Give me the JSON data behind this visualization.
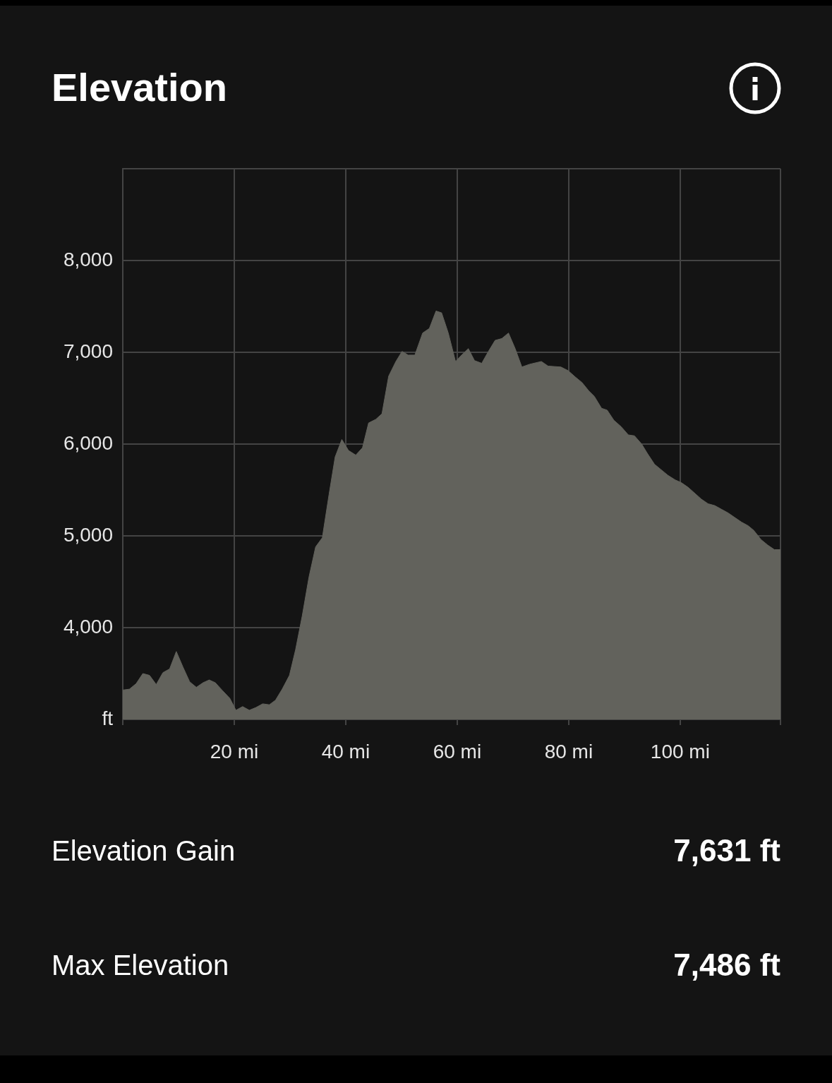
{
  "chart_data": {
    "type": "area",
    "title": "Elevation",
    "x": [
      0,
      1.2,
      2.4,
      3.6,
      4.8,
      6.0,
      7.2,
      8.4,
      9.6,
      10.8,
      12.0,
      13.2,
      14.4,
      15.5,
      16.6,
      17.8,
      19.2,
      20.3,
      21.5,
      22.7,
      23.9,
      25.1,
      26.3,
      27.4,
      28.6,
      29.9,
      31.0,
      32.2,
      33.4,
      34.6,
      35.8,
      37.0,
      38.1,
      39.3,
      40.5,
      41.8,
      43.0,
      44.1,
      45.4,
      46.5,
      47.7,
      49.0,
      50.1,
      51.2,
      52.4,
      53.8,
      55.0,
      56.2,
      57.2,
      58.4,
      59.7,
      60.8,
      62.0,
      63.1,
      64.4,
      65.6,
      66.8,
      68.0,
      69.2,
      70.4,
      71.6,
      73.0,
      75.1,
      76.3,
      78.6,
      79.9,
      81.2,
      82.4,
      83.6,
      84.6,
      85.9,
      86.9,
      88.1,
      89.4,
      90.7,
      91.8,
      93.1,
      94.1,
      95.4,
      96.6,
      97.8,
      99.1,
      100.2,
      101.4,
      102.7,
      103.8,
      105.0,
      106.2,
      107.4,
      108.6,
      109.8,
      111.0,
      112.2,
      113.2,
      114.5,
      115.7,
      116.9,
      118
    ],
    "values": [
      3320,
      3330,
      3390,
      3500,
      3480,
      3380,
      3510,
      3550,
      3740,
      3570,
      3410,
      3350,
      3400,
      3430,
      3400,
      3320,
      3230,
      3100,
      3140,
      3100,
      3130,
      3170,
      3160,
      3210,
      3330,
      3480,
      3760,
      4130,
      4550,
      4880,
      4980,
      5450,
      5860,
      6050,
      5930,
      5880,
      5960,
      6230,
      6270,
      6330,
      6740,
      6900,
      7010,
      6970,
      6970,
      7210,
      7260,
      7450,
      7430,
      7210,
      6900,
      6970,
      7040,
      6910,
      6880,
      7010,
      7130,
      7150,
      7210,
      7040,
      6840,
      6870,
      6900,
      6850,
      6840,
      6800,
      6730,
      6670,
      6580,
      6520,
      6390,
      6370,
      6260,
      6190,
      6100,
      6090,
      6000,
      5900,
      5780,
      5720,
      5660,
      5610,
      5580,
      5530,
      5460,
      5400,
      5350,
      5330,
      5290,
      5250,
      5200,
      5150,
      5110,
      5060,
      4960,
      4900,
      4850,
      4850
    ],
    "color": "#62625c",
    "xlim": [
      0,
      118
    ],
    "xticks": [
      {
        "value": 0,
        "label": null
      },
      {
        "value": 20,
        "label": "20 mi"
      },
      {
        "value": 40,
        "label": "40 mi"
      },
      {
        "value": 60,
        "label": "60 mi"
      },
      {
        "value": 80,
        "label": "80 mi"
      },
      {
        "value": 100,
        "label": "100 mi"
      },
      {
        "value": 118,
        "label": null
      }
    ],
    "ylim": [
      3000,
      9000
    ],
    "yticks": [
      {
        "value": 3000,
        "label": "ft"
      },
      {
        "value": 4000,
        "label": "4,000"
      },
      {
        "value": 5000,
        "label": "5,000"
      },
      {
        "value": 6000,
        "label": "6,000"
      },
      {
        "value": 7000,
        "label": "7,000"
      },
      {
        "value": 8000,
        "label": "8,000"
      },
      {
        "value": 9000,
        "label": null
      }
    ],
    "grid": true,
    "legend": false,
    "marker": "none",
    "annotations": [
      "Elevation Gain",
      "7,631 ft",
      "Max Elevation",
      "7,486 ft"
    ]
  }
}
